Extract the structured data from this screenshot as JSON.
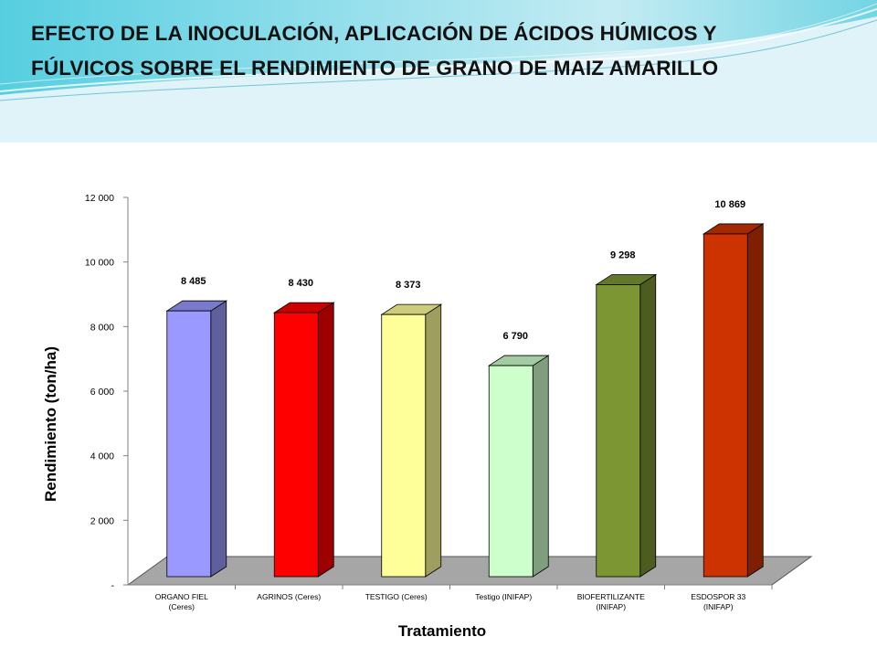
{
  "slide": {
    "title_line1": "EFECTO DE LA INOCULACIÓN, APLICACIÓN DE ÁCIDOS HÚMICOS Y",
    "title_line2": "FÚLVICOS SOBRE EL RENDIMIENTO DE GRANO DE MAIZ AMARILLO"
  },
  "chart_data": {
    "type": "bar",
    "title": "",
    "xlabel": "Tratamiento",
    "ylabel": "Rendimiento (ton/ha)",
    "ylim": [
      0,
      12000
    ],
    "y_ticks": [
      {
        "value": 0,
        "label": "-"
      },
      {
        "value": 2000,
        "label": "2 000"
      },
      {
        "value": 4000,
        "label": "4 000"
      },
      {
        "value": 6000,
        "label": "6 000"
      },
      {
        "value": 8000,
        "label": "8 000"
      },
      {
        "value": 10000,
        "label": "10 000"
      },
      {
        "value": 12000,
        "label": "12 000"
      }
    ],
    "categories": [
      [
        "ORGANO FIEL",
        "(Ceres)"
      ],
      [
        "AGRINOS (Ceres)"
      ],
      [
        "TESTIGO (Ceres)"
      ],
      [
        "Testigo (INIFAP)"
      ],
      [
        "BIOFERTILIZANTE",
        "(INIFAP)"
      ],
      [
        "ESDOSPOR 33",
        "(INIFAP)"
      ]
    ],
    "values": [
      8485,
      8430,
      8373,
      6790,
      9298,
      10869
    ],
    "data_labels": [
      "8 485",
      "8 430",
      "8 373",
      "6 790",
      "9 298",
      "10 869"
    ],
    "colors": [
      "#9999ff",
      "#ff0000",
      "#ffff99",
      "#ccffcc",
      "#7c9634",
      "#cc3300"
    ],
    "style": "3d-column",
    "grid": false,
    "legend": "none"
  }
}
